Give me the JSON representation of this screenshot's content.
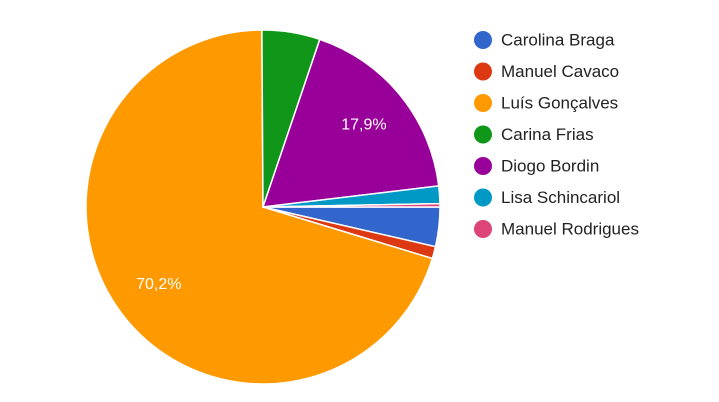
{
  "chart_data": {
    "type": "pie",
    "categories": [
      "Carolina Braga",
      "Manuel Cavaco",
      "Luís Gonçalves",
      "Carina Frias",
      "Diogo Bordin",
      "Lisa Schincariol",
      "Manuel Rodrigues"
    ],
    "values": [
      3.6,
      1.1,
      70.2,
      5.3,
      17.9,
      1.6,
      0.3
    ],
    "value_labels": [
      null,
      null,
      "70,2%",
      null,
      "17,9%",
      null,
      null
    ],
    "colors": [
      "#3366cc",
      "#dc3912",
      "#ff9900",
      "#109618",
      "#990099",
      "#0099c6",
      "#dd4477"
    ],
    "legend": "right"
  }
}
